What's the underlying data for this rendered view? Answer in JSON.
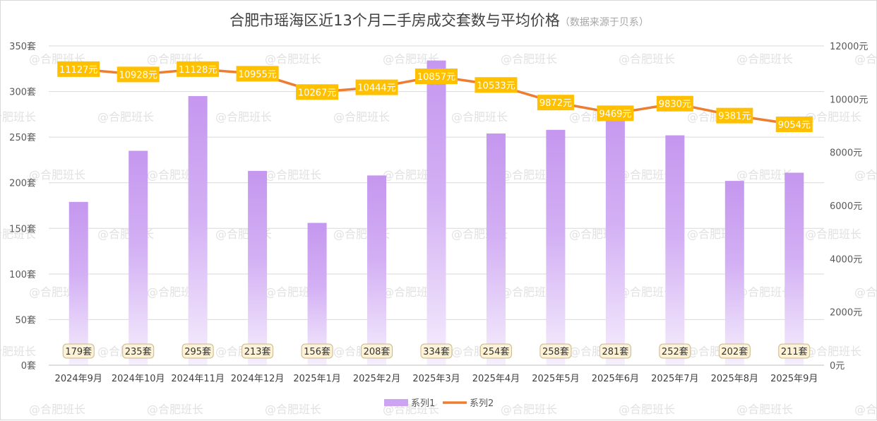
{
  "chart_data": {
    "type": "bar+line",
    "title": "合肥市瑶海区近13个月二手房成交套数与平均价格",
    "subtitle": "（数据来源于贝系）",
    "categories": [
      "2024年9月",
      "2024年10月",
      "2024年11月",
      "2024年12月",
      "2025年1月",
      "2025年2月",
      "2025年3月",
      "2025年4月",
      "2025年5月",
      "2025年6月",
      "2025年7月",
      "2025年8月",
      "2025年9月"
    ],
    "series": [
      {
        "name": "系列1",
        "type": "bar",
        "axis": "left",
        "values": [
          179,
          235,
          295,
          213,
          156,
          208,
          334,
          254,
          258,
          281,
          252,
          202,
          211
        ],
        "labels": [
          "179套",
          "235套",
          "295套",
          "213套",
          "156套",
          "208套",
          "334套",
          "254套",
          "258套",
          "281套",
          "252套",
          "202套",
          "211套"
        ],
        "color": "#c79af0"
      },
      {
        "name": "系列2",
        "type": "line",
        "axis": "right",
        "values": [
          11127,
          10928,
          11128,
          10955,
          10267,
          10444,
          10857,
          10533,
          9872,
          9469,
          9830,
          9381,
          9054
        ],
        "labels": [
          "11127元",
          "10928元",
          "11128元",
          "10955元",
          "10267元",
          "10444元",
          "10857元",
          "10533元",
          "9872元",
          "9469元",
          "9830元",
          "9381元",
          "9054元"
        ],
        "color": "#ed7d31",
        "label_bg": "#ffc000"
      }
    ],
    "left_axis": {
      "range": [
        0,
        350
      ],
      "ticks": [
        0,
        50,
        100,
        150,
        200,
        250,
        300,
        350
      ],
      "tick_labels": [
        "0套",
        "50套",
        "100套",
        "150套",
        "200套",
        "250套",
        "300套",
        "350套"
      ]
    },
    "right_axis": {
      "range": [
        0,
        12000
      ],
      "ticks": [
        0,
        2000,
        4000,
        6000,
        8000,
        10000,
        12000
      ],
      "tick_labels": [
        "0元",
        "2000元",
        "4000元",
        "6000元",
        "8000元",
        "10000元",
        "12000元"
      ]
    },
    "grid": true,
    "legend_position": "bottom",
    "watermark": "@合肥班长"
  }
}
